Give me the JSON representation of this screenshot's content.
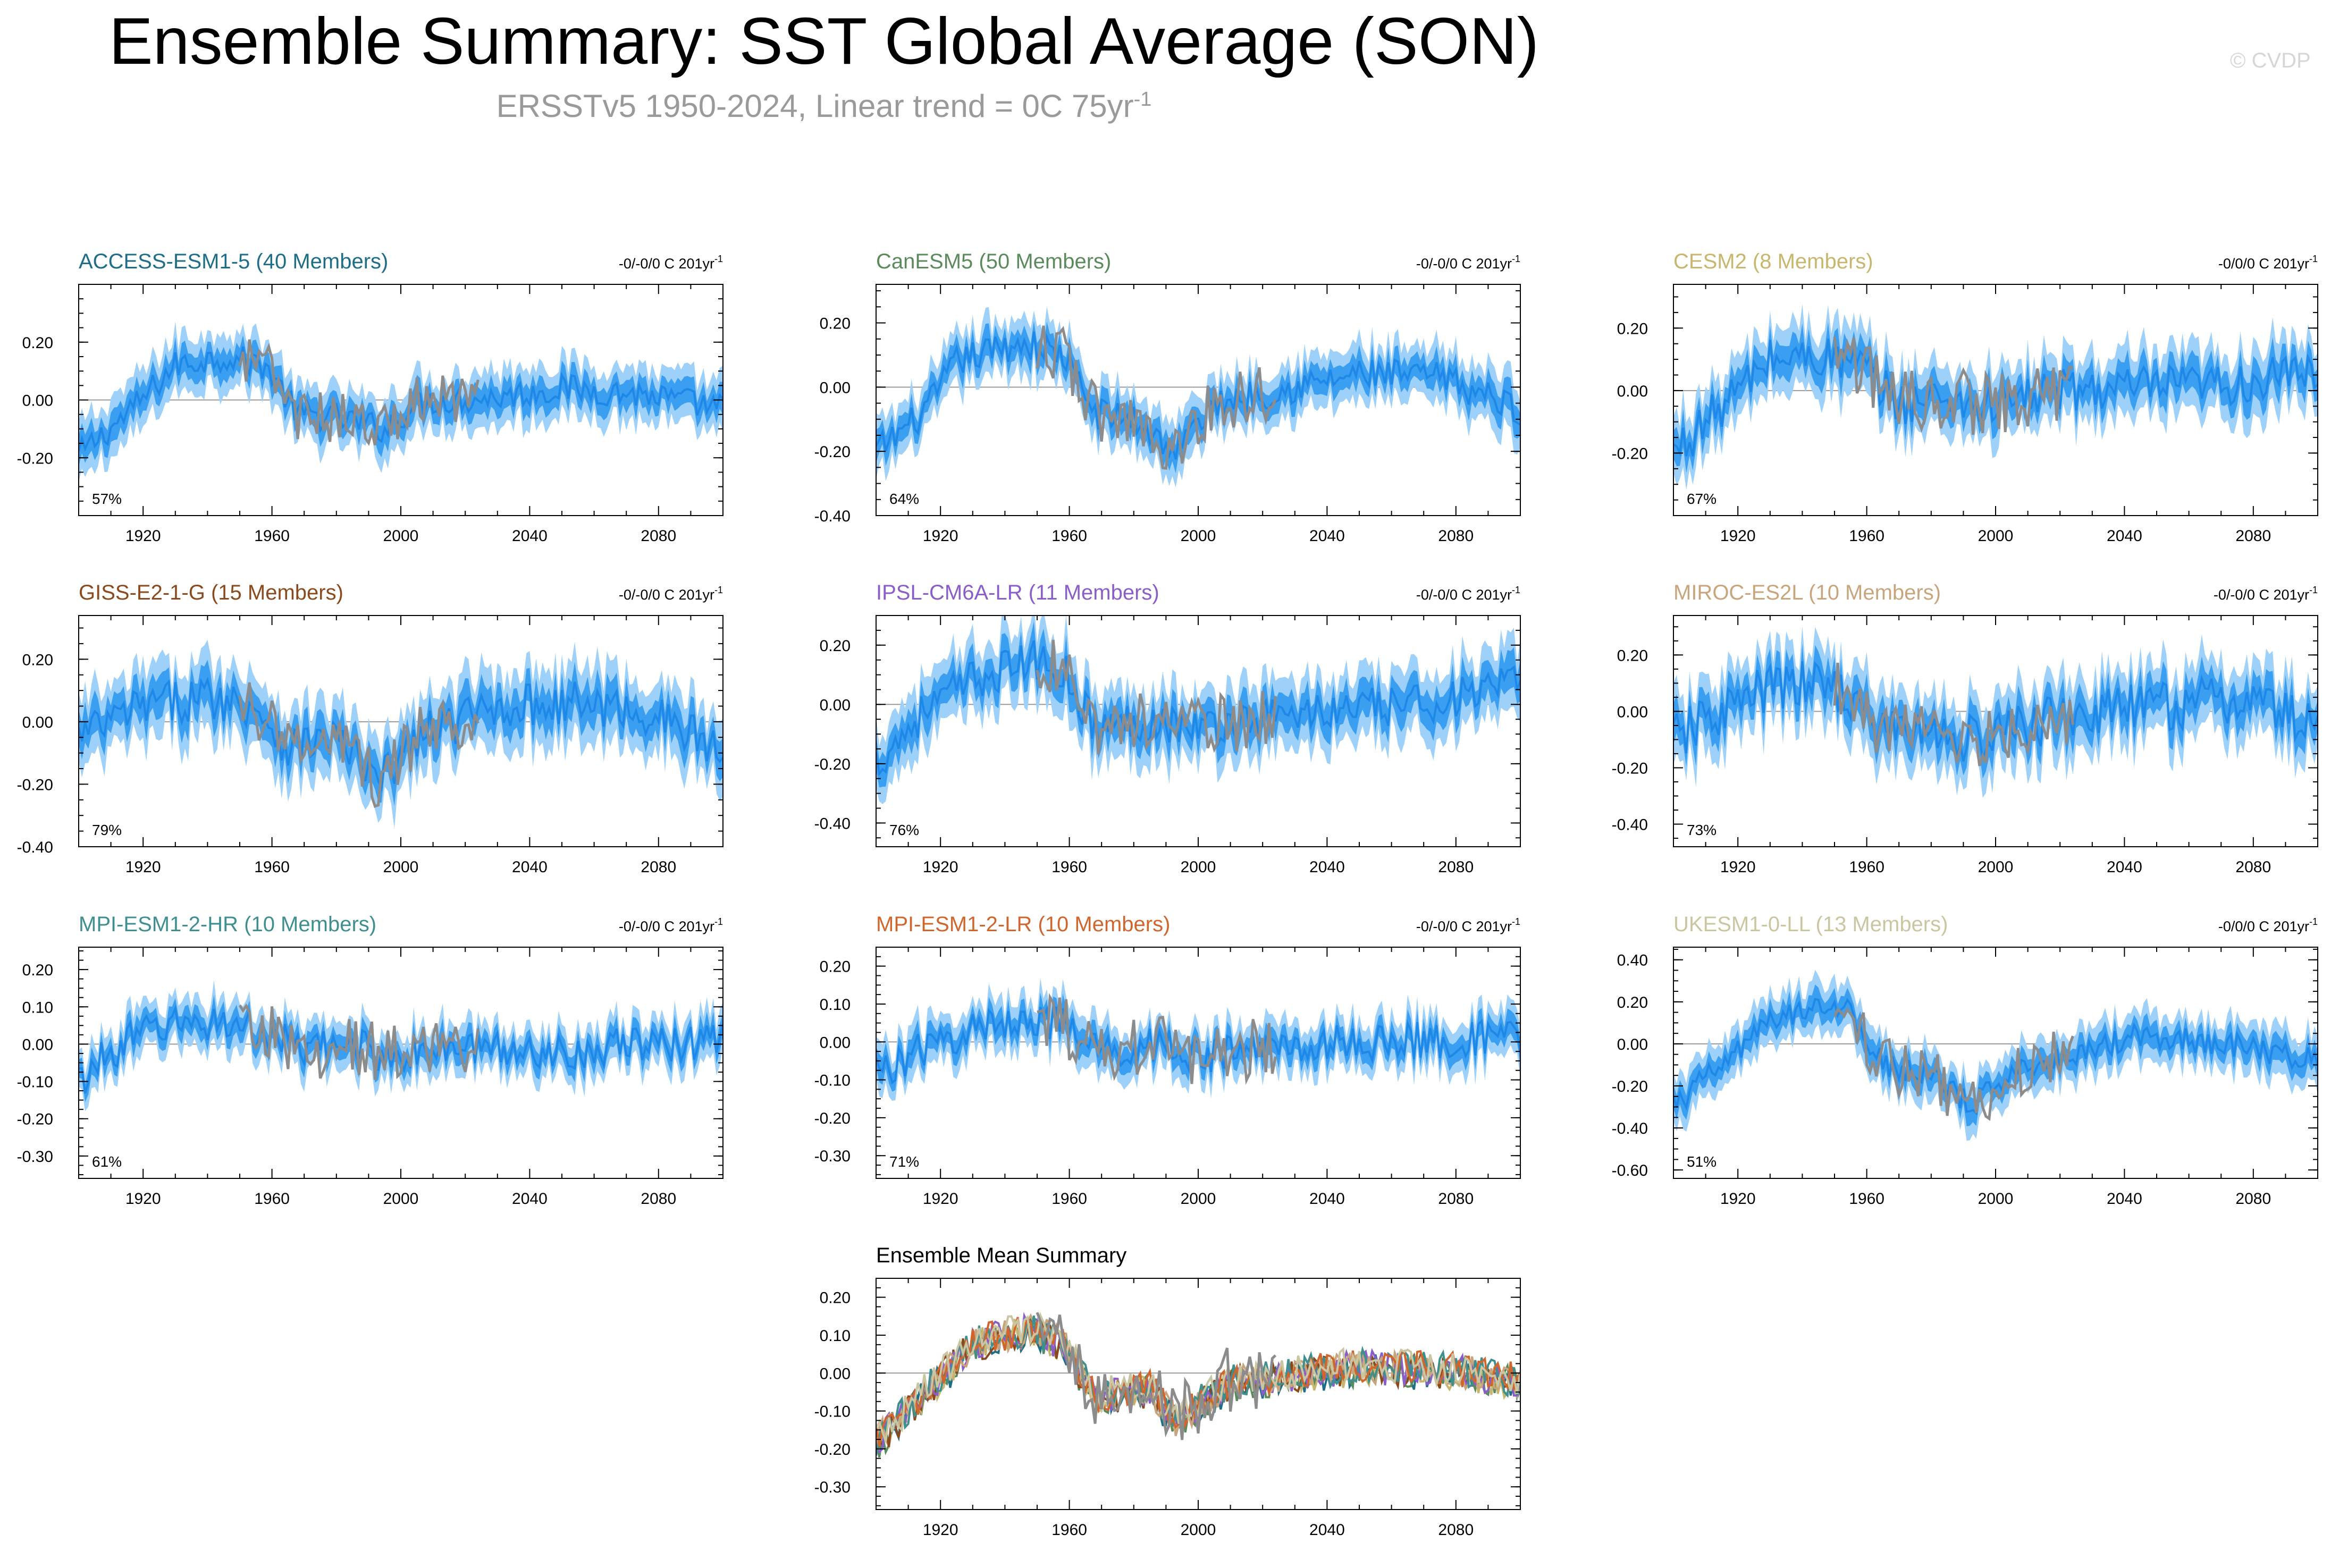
{
  "title": "Ensemble Summary: SST Global Average (SON)",
  "subtitle": {
    "text": "ERSSTv5 1950-2024, Linear trend = 0C 75yr",
    "sup": "-1"
  },
  "credit": "© CVDP",
  "colors": {
    "band_outer": "#9ed1fa",
    "band_inner": "#3a9ef1",
    "mean_line": "#1e88e8",
    "obs_line": "#8c8c8c",
    "zero_line": "#9a9a9a"
  },
  "chart_data": [
    {
      "type": "line",
      "title": "ACCESS-ESM1-5 (40 Members)",
      "title_color": "#1f6e87",
      "trend": "-0/-0/0 C 201yr",
      "trend_sup": "-1",
      "pct": "57%",
      "x_ticks": [
        "1920",
        "1960",
        "2000",
        "2040",
        "2080"
      ],
      "y_ticks": [
        "0.20",
        "0.00",
        "-0.20"
      ],
      "ylim": [
        -0.4,
        0.4
      ],
      "xlim": [
        1900,
        2100
      ],
      "mean_keys": [
        [
          1900,
          -0.19
        ],
        [
          1915,
          -0.05
        ],
        [
          1930,
          0.12
        ],
        [
          1945,
          0.15
        ],
        [
          1958,
          0.12
        ],
        [
          1968,
          -0.05
        ],
        [
          1980,
          -0.06
        ],
        [
          1995,
          -0.1
        ],
        [
          2005,
          -0.01
        ],
        [
          2030,
          0.01
        ],
        [
          2050,
          0.04
        ],
        [
          2075,
          0.02
        ],
        [
          2100,
          -0.03
        ]
      ],
      "obs_start": 1950,
      "obs_end": 2024,
      "obs_amp": 0.09,
      "spread": 0.09,
      "noise": 0.05
    },
    {
      "type": "line",
      "title": "CanESM5 (50 Members)",
      "title_color": "#5b8a5c",
      "trend": "-0/-0/0 C 201yr",
      "trend_sup": "-1",
      "pct": "64%",
      "x_ticks": [
        "1920",
        "1960",
        "2000",
        "2040",
        "2080"
      ],
      "y_ticks": [
        "0.20",
        "0.00",
        "-0.20",
        "-0.40"
      ],
      "ylim": [
        -0.4,
        0.32
      ],
      "xlim": [
        1900,
        2100
      ],
      "mean_keys": [
        [
          1900,
          -0.2
        ],
        [
          1915,
          -0.08
        ],
        [
          1925,
          0.08
        ],
        [
          1945,
          0.14
        ],
        [
          1958,
          0.1
        ],
        [
          1968,
          -0.08
        ],
        [
          1980,
          -0.1
        ],
        [
          1993,
          -0.2
        ],
        [
          2005,
          -0.05
        ],
        [
          2030,
          0.0
        ],
        [
          2050,
          0.04
        ],
        [
          2075,
          0.03
        ],
        [
          2100,
          -0.07
        ]
      ],
      "obs_start": 1950,
      "obs_end": 2024,
      "obs_amp": 0.09,
      "spread": 0.08,
      "noise": 0.05
    },
    {
      "type": "line",
      "title": "CESM2 (8 Members)",
      "title_color": "#c8b66e",
      "trend": "-0/0/0 C 201yr",
      "trend_sup": "-1",
      "pct": "67%",
      "x_ticks": [
        "1920",
        "1960",
        "2000",
        "2040",
        "2080"
      ],
      "y_ticks": [
        "0.20",
        "0.00",
        "-0.20"
      ],
      "ylim": [
        -0.4,
        0.34
      ],
      "xlim": [
        1900,
        2100
      ],
      "mean_keys": [
        [
          1900,
          -0.2
        ],
        [
          1915,
          -0.05
        ],
        [
          1930,
          0.1
        ],
        [
          1945,
          0.11
        ],
        [
          1958,
          0.08
        ],
        [
          1970,
          -0.04
        ],
        [
          1985,
          -0.02
        ],
        [
          1995,
          -0.05
        ],
        [
          2020,
          0.0
        ],
        [
          2050,
          0.01
        ],
        [
          2075,
          0.02
        ],
        [
          2100,
          0.06
        ]
      ],
      "obs_start": 1950,
      "obs_end": 2024,
      "obs_amp": 0.1,
      "spread": 0.1,
      "noise": 0.07
    },
    {
      "type": "line",
      "title": "GISS-E2-1-G (15 Members)",
      "title_color": "#8a4a1e",
      "trend": "-0/-0/0 C 201yr",
      "trend_sup": "-1",
      "pct": "79%",
      "x_ticks": [
        "1920",
        "1960",
        "2000",
        "2040",
        "2080"
      ],
      "y_ticks": [
        "0.20",
        "0.00",
        "-0.20",
        "-0.40"
      ],
      "ylim": [
        -0.4,
        0.34
      ],
      "xlim": [
        1900,
        2100
      ],
      "mean_keys": [
        [
          1900,
          -0.05
        ],
        [
          1920,
          0.05
        ],
        [
          1940,
          0.08
        ],
        [
          1955,
          0.05
        ],
        [
          1965,
          -0.08
        ],
        [
          1980,
          -0.05
        ],
        [
          1993,
          -0.2
        ],
        [
          2005,
          -0.05
        ],
        [
          2030,
          0.05
        ],
        [
          2055,
          0.06
        ],
        [
          2080,
          0.02
        ],
        [
          2100,
          -0.1
        ]
      ],
      "obs_start": 1950,
      "obs_end": 2024,
      "obs_amp": 0.1,
      "spread": 0.11,
      "noise": 0.07
    },
    {
      "type": "line",
      "title": "IPSL-CM6A-LR (11 Members)",
      "title_color": "#8a5ec9",
      "trend": "-0/-0/0 C 201yr",
      "trend_sup": "-1",
      "pct": "76%",
      "x_ticks": [
        "1920",
        "1960",
        "2000",
        "2040",
        "2080"
      ],
      "y_ticks": [
        "0.20",
        "0.00",
        "-0.20",
        "-0.40"
      ],
      "ylim": [
        -0.48,
        0.3
      ],
      "xlim": [
        1900,
        2100
      ],
      "mean_keys": [
        [
          1900,
          -0.2
        ],
        [
          1915,
          -0.02
        ],
        [
          1930,
          0.08
        ],
        [
          1948,
          0.15
        ],
        [
          1958,
          0.12
        ],
        [
          1968,
          -0.08
        ],
        [
          1985,
          -0.05
        ],
        [
          2000,
          -0.08
        ],
        [
          2030,
          -0.03
        ],
        [
          2060,
          -0.01
        ],
        [
          2085,
          0.03
        ],
        [
          2100,
          0.07
        ]
      ],
      "obs_start": 1950,
      "obs_end": 2024,
      "obs_amp": 0.1,
      "spread": 0.11,
      "noise": 0.07
    },
    {
      "type": "line",
      "title": "MIROC-ES2L (10 Members)",
      "title_color": "#c8a57d",
      "trend": "-0/-0/0 C 201yr",
      "trend_sup": "-1",
      "pct": "73%",
      "x_ticks": [
        "1920",
        "1960",
        "2000",
        "2040",
        "2080"
      ],
      "y_ticks": [
        "0.20",
        "0.00",
        "-0.20",
        "-0.40"
      ],
      "ylim": [
        -0.48,
        0.34
      ],
      "xlim": [
        1900,
        2100
      ],
      "mean_keys": [
        [
          1900,
          -0.1
        ],
        [
          1915,
          0.0
        ],
        [
          1930,
          0.08
        ],
        [
          1950,
          0.1
        ],
        [
          1962,
          -0.05
        ],
        [
          1980,
          -0.08
        ],
        [
          1995,
          -0.1
        ],
        [
          2020,
          -0.02
        ],
        [
          2050,
          0.02
        ],
        [
          2080,
          0.04
        ],
        [
          2100,
          -0.06
        ]
      ],
      "obs_start": 1950,
      "obs_end": 2024,
      "obs_amp": 0.1,
      "spread": 0.12,
      "noise": 0.09
    },
    {
      "type": "line",
      "title": "MPI-ESM1-2-HR (10 Members)",
      "title_color": "#3f8f8f",
      "trend": "-0/-0/0 C 201yr",
      "trend_sup": "-1",
      "pct": "61%",
      "x_ticks": [
        "1920",
        "1960",
        "2000",
        "2040",
        "2080"
      ],
      "y_ticks": [
        "0.20",
        "0.10",
        "0.00",
        "-0.10",
        "-0.20",
        "-0.30"
      ],
      "ylim": [
        -0.36,
        0.26
      ],
      "xlim": [
        1900,
        2100
      ],
      "mean_keys": [
        [
          1900,
          -0.1
        ],
        [
          1910,
          -0.02
        ],
        [
          1925,
          0.05
        ],
        [
          1945,
          0.06
        ],
        [
          1958,
          0.03
        ],
        [
          1970,
          -0.02
        ],
        [
          1985,
          0.0
        ],
        [
          1995,
          -0.03
        ],
        [
          2020,
          -0.01
        ],
        [
          2050,
          -0.02
        ],
        [
          2080,
          0.0
        ],
        [
          2100,
          0.01
        ]
      ],
      "obs_start": 1950,
      "obs_end": 2024,
      "obs_amp": 0.08,
      "spread": 0.06,
      "noise": 0.05
    },
    {
      "type": "line",
      "title": "MPI-ESM1-2-LR (10 Members)",
      "title_color": "#d0662e",
      "trend": "-0/-0/0 C 201yr",
      "trend_sup": "-1",
      "pct": "71%",
      "x_ticks": [
        "1920",
        "1960",
        "2000",
        "2040",
        "2080"
      ],
      "y_ticks": [
        "0.20",
        "0.10",
        "0.00",
        "-0.10",
        "-0.20",
        "-0.30"
      ],
      "ylim": [
        -0.36,
        0.25
      ],
      "xlim": [
        1900,
        2100
      ],
      "mean_keys": [
        [
          1900,
          -0.08
        ],
        [
          1915,
          -0.02
        ],
        [
          1930,
          0.03
        ],
        [
          1948,
          0.07
        ],
        [
          1958,
          0.04
        ],
        [
          1970,
          -0.03
        ],
        [
          1990,
          0.0
        ],
        [
          2000,
          -0.04
        ],
        [
          2025,
          -0.01
        ],
        [
          2060,
          0.0
        ],
        [
          2100,
          0.01
        ]
      ],
      "obs_start": 1950,
      "obs_end": 2024,
      "obs_amp": 0.08,
      "spread": 0.06,
      "noise": 0.05
    },
    {
      "type": "line",
      "title": "UKESM1-0-LL (13 Members)",
      "title_color": "#c9c6a1",
      "trend": "-0/0/0 C 201yr",
      "trend_sup": "-1",
      "pct": "51%",
      "x_ticks": [
        "1920",
        "1960",
        "2000",
        "2040",
        "2080"
      ],
      "y_ticks": [
        "0.40",
        "0.20",
        "0.00",
        "-0.20",
        "-0.40",
        "-0.60"
      ],
      "ylim": [
        -0.64,
        0.46
      ],
      "xlim": [
        1900,
        2100
      ],
      "mean_keys": [
        [
          1900,
          -0.3
        ],
        [
          1915,
          -0.1
        ],
        [
          1930,
          0.1
        ],
        [
          1945,
          0.2
        ],
        [
          1955,
          0.15
        ],
        [
          1965,
          -0.1
        ],
        [
          1980,
          -0.15
        ],
        [
          1993,
          -0.3
        ],
        [
          2005,
          -0.12
        ],
        [
          2025,
          -0.05
        ],
        [
          2045,
          0.05
        ],
        [
          2060,
          0.02
        ],
        [
          2080,
          -0.02
        ],
        [
          2100,
          -0.08
        ]
      ],
      "obs_start": 1950,
      "obs_end": 2024,
      "obs_amp": 0.14,
      "spread": 0.11,
      "noise": 0.06
    },
    {
      "type": "line",
      "title": "Ensemble Mean Summary",
      "title_color": "#000000",
      "summary": true,
      "x_ticks": [
        "1920",
        "1960",
        "2000",
        "2040",
        "2080"
      ],
      "y_ticks": [
        "0.20",
        "0.10",
        "0.00",
        "-0.10",
        "-0.20",
        "-0.30"
      ],
      "ylim": [
        -0.36,
        0.25
      ],
      "xlim": [
        1900,
        2100
      ],
      "series": [
        {
          "name": "ACCESS-ESM1-5",
          "color": "#1f6e87"
        },
        {
          "name": "CanESM5",
          "color": "#5b8a5c"
        },
        {
          "name": "CESM2",
          "color": "#c8b66e"
        },
        {
          "name": "GISS-E2-1-G",
          "color": "#8a4a1e"
        },
        {
          "name": "IPSL-CM6A-LR",
          "color": "#8a5ec9"
        },
        {
          "name": "MIROC-ES2L",
          "color": "#c8a57d"
        },
        {
          "name": "MPI-ESM1-2-HR",
          "color": "#3f8f8f"
        },
        {
          "name": "MPI-ESM1-2-LR",
          "color": "#d0662e"
        },
        {
          "name": "UKESM1-0-LL",
          "color": "#c9c6a1"
        },
        {
          "name": "ERSSTv5",
          "color": "#8c8c8c"
        }
      ]
    }
  ]
}
